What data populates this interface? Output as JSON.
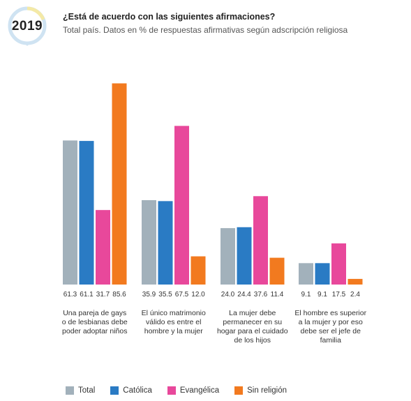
{
  "header": {
    "year": "2019",
    "title": "¿Está de acuerdo con las siguientes afirmaciones?",
    "subtitle": "Total país. Datos en % de respuestas afirmativas según adscripción religiosa"
  },
  "colors": {
    "Total": "#a2b1bb",
    "Católica": "#2a7bc4",
    "Evangélica": "#e8489b",
    "Sin religión": "#f27a1f",
    "badge_ring": "#cfe3f2",
    "badge_accent": "#f4e9a6"
  },
  "chart_data": {
    "type": "bar",
    "categories": [
      "Una pareja de gays o de lesbianas debe poder adoptar niños",
      "El único matrimonio válido es entre el hombre y la mujer",
      "La mujer debe permanecer en su hogar para el cuidado de los hijos",
      "El hombre es superior a la mujer y por eso debe ser el jefe de familia"
    ],
    "category_lines": [
      [
        "Una pareja de gays",
        "o de lesbianas debe",
        "poder adoptar niños"
      ],
      [
        "El único matrimonio",
        "válido es entre el",
        "hombre y la mujer"
      ],
      [
        "La mujer debe",
        "permanecer en su",
        "hogar para el cuidado",
        "de los hijos"
      ],
      [
        "El hombre es superior",
        "a la mujer y por eso",
        "debe ser el jefe de",
        "familia"
      ]
    ],
    "series": [
      {
        "name": "Total",
        "values": [
          61.3,
          35.9,
          24.0,
          9.1
        ],
        "labels": [
          "61.3",
          "35.9",
          "24.0",
          "9.1"
        ]
      },
      {
        "name": "Católica",
        "values": [
          61.1,
          35.5,
          24.4,
          9.1
        ],
        "labels": [
          "61.1",
          "35.5",
          "24.4",
          "9.1"
        ]
      },
      {
        "name": "Evangélica",
        "values": [
          31.7,
          67.5,
          37.6,
          17.5
        ],
        "labels": [
          "31.7",
          "67.5",
          "37.6",
          "17.5"
        ]
      },
      {
        "name": "Sin religión",
        "values": [
          85.6,
          12.0,
          11.4,
          2.4
        ],
        "labels": [
          "85.6",
          "12.0",
          "11.4",
          "2.4"
        ]
      }
    ],
    "ylim": [
      0,
      100
    ],
    "grid": false,
    "legend_position": "bottom-left",
    "xlabel": "",
    "ylabel": ""
  }
}
